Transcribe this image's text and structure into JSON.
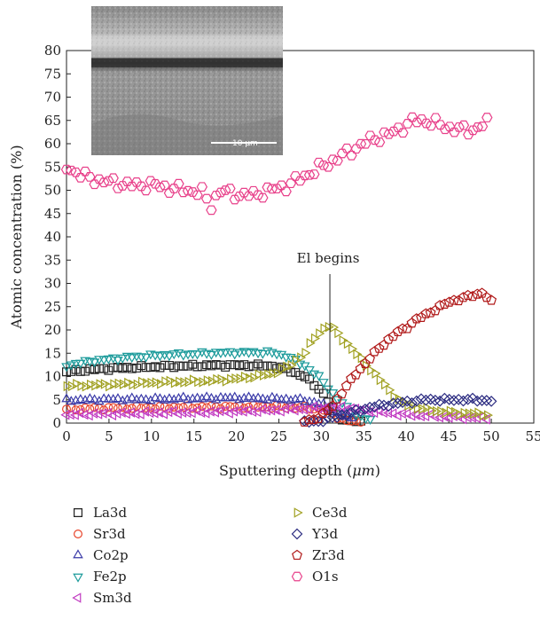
{
  "chart_data": {
    "type": "scatter",
    "xlabel_prefix": "Sputtering depth (",
    "xlabel_unit": "μm",
    "xlabel_suffix": ")",
    "ylabel": "Atomic concentration (%)",
    "xlim": [
      0,
      55
    ],
    "ylim": [
      0,
      80
    ],
    "x_ticks": [
      "0",
      "5",
      "10",
      "15",
      "20",
      "25",
      "30",
      "35",
      "40",
      "45",
      "50",
      "55"
    ],
    "y_ticks": [
      "0",
      "5",
      "10",
      "15",
      "20",
      "25",
      "30",
      "35",
      "40",
      "45",
      "50",
      "55",
      "60",
      "65",
      "70",
      "75",
      "80"
    ],
    "grid": false,
    "legend_position": "below-plot",
    "annotation": {
      "text": "El begins",
      "x": 31
    },
    "inset": {
      "description_kind": "SEM cross-section micrograph",
      "scale_bar_text": "10 μm"
    },
    "series": [
      {
        "name": "La3d",
        "marker": "square",
        "color": "#222222",
        "x": [
          0,
          3,
          6,
          9,
          12,
          15,
          18,
          21,
          24,
          26,
          28,
          30,
          31,
          32,
          33,
          35
        ],
        "y": [
          11,
          11.5,
          11.8,
          12,
          12.2,
          12.3,
          12.4,
          12.4,
          12.3,
          11.5,
          10,
          7,
          4,
          1.5,
          0.5,
          0.2
        ]
      },
      {
        "name": "Sr3d",
        "marker": "circle",
        "color": "#e8442a",
        "x": [
          0,
          5,
          10,
          15,
          20,
          25,
          28,
          30,
          31,
          32,
          33,
          35
        ],
        "y": [
          3,
          3.2,
          3.3,
          3.4,
          3.5,
          3.5,
          3.3,
          3,
          2.5,
          1.2,
          0.5,
          0.2
        ]
      },
      {
        "name": "Co2p",
        "marker": "triangle-up",
        "color": "#3a3aa8",
        "x": [
          0,
          5,
          10,
          15,
          20,
          25,
          28,
          30,
          32,
          34
        ],
        "y": [
          4.8,
          5,
          5,
          5.2,
          5.3,
          5.1,
          4.8,
          4,
          2,
          0.5
        ]
      },
      {
        "name": "Fe2p",
        "marker": "triangle-down",
        "color": "#1a9a9a",
        "x": [
          0,
          3,
          6,
          9,
          12,
          15,
          18,
          21,
          24,
          26,
          28,
          30,
          32,
          34,
          36
        ],
        "y": [
          12.5,
          13.5,
          14,
          14.5,
          14.8,
          15,
          15.2,
          15.3,
          15.3,
          14.5,
          12.5,
          9.5,
          5,
          2,
          0.5
        ]
      },
      {
        "name": "Sm3d",
        "marker": "triangle-left",
        "color": "#c13ac1",
        "x": [
          0,
          5,
          10,
          15,
          20,
          25,
          28,
          30,
          32,
          34,
          36,
          40,
          45,
          50
        ],
        "y": [
          1.8,
          2,
          2.2,
          2.3,
          2.5,
          2.8,
          3,
          3.3,
          3.5,
          3,
          2.5,
          1.8,
          1.3,
          1
        ]
      },
      {
        "name": "Ce3d",
        "marker": "triangle-right",
        "color": "#a0a020",
        "x": [
          0,
          4,
          8,
          12,
          16,
          20,
          24,
          26,
          28,
          29,
          30,
          31,
          32,
          33,
          34,
          35,
          36,
          37,
          38,
          39,
          40,
          42,
          44,
          46,
          48,
          50
        ],
        "y": [
          8,
          8.2,
          8.5,
          8.8,
          9,
          9.5,
          10.5,
          12,
          15,
          18,
          20,
          21,
          19,
          17,
          15,
          13,
          11,
          9,
          7,
          5,
          4,
          3,
          2.5,
          2.2,
          2,
          1.8
        ]
      },
      {
        "name": "Y3d",
        "marker": "diamond",
        "color": "#2a2a80",
        "x": [
          28,
          30,
          31,
          32,
          33,
          34,
          35,
          36,
          38,
          40,
          42,
          44,
          46,
          48,
          50
        ],
        "y": [
          0.2,
          0.5,
          1,
          1.5,
          2,
          2.5,
          3,
          3.5,
          4,
          4.5,
          5,
          5,
          5,
          5,
          4.8
        ]
      },
      {
        "name": "Zr3d",
        "marker": "pentagon",
        "color": "#b01818",
        "x": [
          28,
          29,
          30,
          31,
          32,
          33,
          34,
          35,
          36,
          37,
          38,
          39,
          40,
          41,
          42,
          43,
          44,
          45,
          46,
          47,
          48,
          49,
          50
        ],
        "y": [
          0.3,
          0.8,
          1.5,
          3,
          5.5,
          8,
          10.5,
          12.5,
          14.5,
          16.5,
          18,
          19.5,
          20.5,
          22,
          23,
          24,
          25,
          26,
          26.5,
          27,
          27.5,
          28,
          26
        ]
      },
      {
        "name": "O1s",
        "marker": "hexagon",
        "color": "#e8408a",
        "x": [
          0,
          2,
          4,
          6,
          8,
          10,
          12,
          14,
          16,
          17,
          18,
          20,
          22,
          24,
          26,
          28,
          30,
          32,
          34,
          36,
          38,
          40,
          41,
          42,
          44,
          46,
          48,
          50
        ],
        "y": [
          55,
          53,
          52,
          51.5,
          51,
          51.2,
          50.5,
          50,
          49.5,
          46.5,
          50,
          49,
          49,
          50,
          51,
          53,
          55,
          57,
          59,
          61,
          62,
          64,
          65,
          65,
          64,
          63,
          63,
          65
        ]
      }
    ]
  }
}
